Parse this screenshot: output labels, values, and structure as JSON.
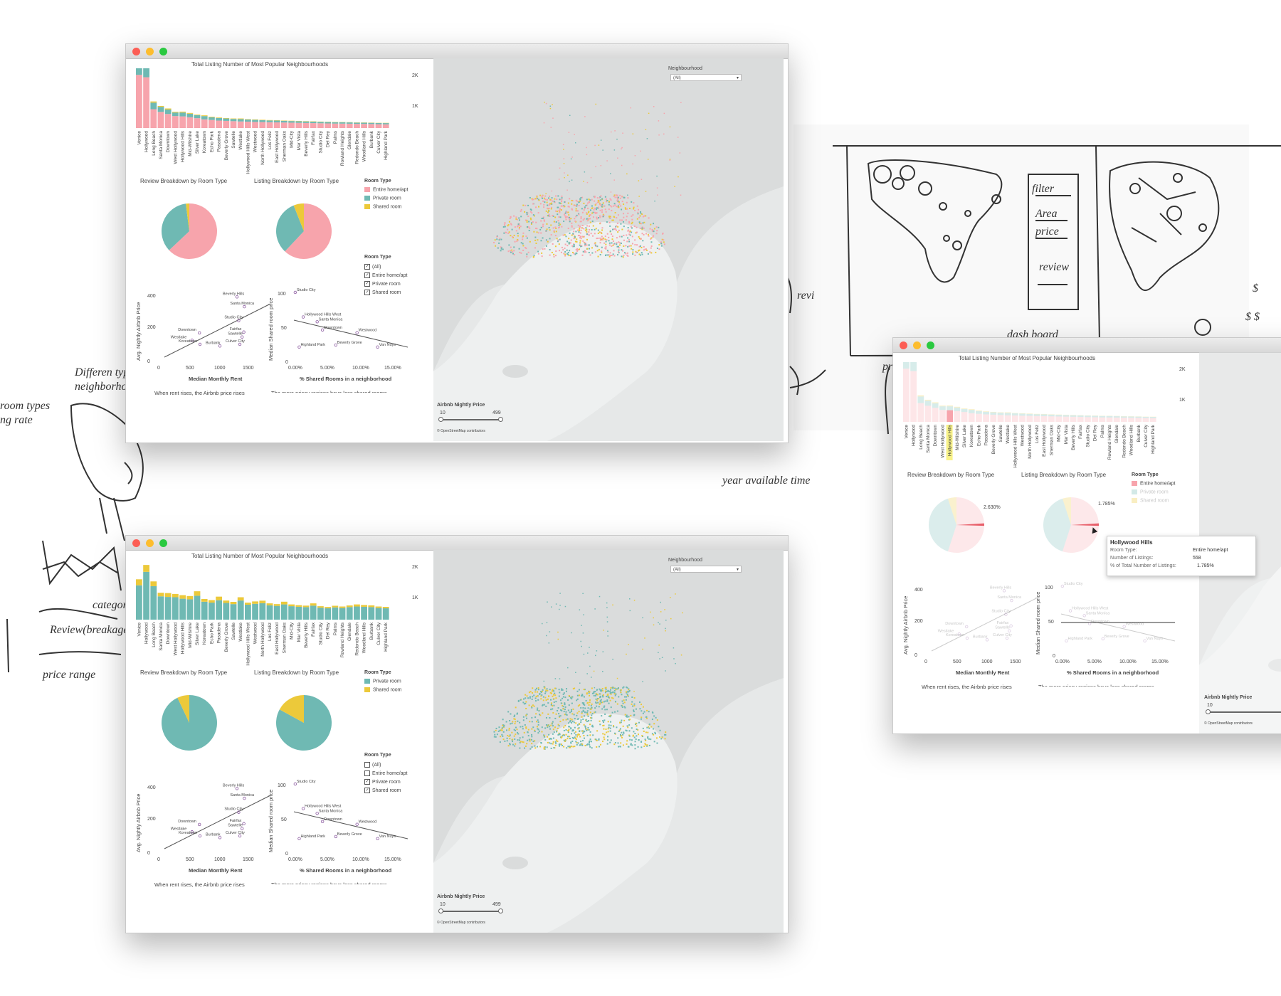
{
  "colors": {
    "entire": "#f7a4ac",
    "private": "#6fb9b3",
    "shared": "#ecc93a",
    "map_bg": "#e6e8e8",
    "point": "#8b5aa0"
  },
  "dashboard": {
    "bar_title": "Total Listing Number of Most Popular Neighbourhoods",
    "y_ticks": [
      "2K",
      "1K"
    ],
    "review_title": "Review Breakdown by Room Type",
    "listing_title": "Listing Breakdown by Room Type",
    "legend_title": "Room Type",
    "filter_title": "Room Type",
    "neigh_label": "Neighbourhood",
    "neigh_value": "(All)",
    "price_label": "Airbnb Nightly Price",
    "price_min": "10",
    "price_max": "499",
    "osm": "© OpenStreetMap contributors",
    "s1_ylabel": "Avg. Nightly Airbnb Price",
    "s1_xlabel": "Median Monthly Rent",
    "s1_yticks": [
      "400",
      "200",
      "0"
    ],
    "s1_xticks": [
      "0",
      "500",
      "1000",
      "1500"
    ],
    "s1_caption": "When rent rises, the Airbnb price rises",
    "s2_ylabel": "Median Shared room price",
    "s2_xlabel": "% Shared Rooms in a neighborhood",
    "s2_yticks": [
      "100",
      "50",
      "0"
    ],
    "s2_xticks": [
      "0.00%",
      "5.00%",
      "10.00%",
      "15.00%"
    ],
    "s2_caption": "The more pricey regions have less shared rooms"
  },
  "legend_items": [
    "Entire home/apt",
    "Private room",
    "Shared room"
  ],
  "filter_items": [
    "(All)",
    "Entire home/apt",
    "Private room",
    "Shared room"
  ],
  "neighbourhoods": [
    "Venice",
    "Hollywood",
    "Long Beach",
    "Santa Monica",
    "Downtown",
    "West Hollywood",
    "Hollywood Hills",
    "Mid-Wilshire",
    "Silver Lake",
    "Koreatown",
    "Echo Park",
    "Pasadena",
    "Beverly Grove",
    "Sawtelle",
    "Westlake",
    "Hollywood Hills West",
    "Westwood",
    "North Hollywood",
    "Los Feliz",
    "East Hollywood",
    "Sherman Oaks",
    "Mid-City",
    "Mar Vista",
    "Beverly Hills",
    "Fairfax",
    "Studio City",
    "Del Rey",
    "Palms",
    "Rowland Heights",
    "Glendale",
    "Redondo Beach",
    "Woodland Hills",
    "Burbank",
    "Culver City",
    "Highland Park"
  ],
  "windows": [
    {
      "name": "window-entire",
      "chart_data": {
        "type": "bar",
        "series": [
          {
            "name": "Entire home/apt",
            "values": [
              1780,
              1700,
              630,
              540,
              470,
              400,
              390,
              360,
              330,
              290,
              270,
              250,
              240,
              230,
              220,
              215,
              205,
              200,
              195,
              190,
              185,
              180,
              175,
              170,
              165,
              160,
              155,
              150,
              148,
              145,
              140,
              138,
              135,
              130,
              125
            ]
          },
          {
            "name": "Private room",
            "values": [
              480,
              560,
              220,
              170,
              150,
              120,
              130,
              120,
              100,
              110,
              90,
              85,
              80,
              75,
              80,
              70,
              70,
              65,
              60,
              62,
              58,
              55,
              54,
              52,
              50,
              48,
              47,
              45,
              46,
              44,
              42,
              41,
              40,
              38,
              40
            ]
          },
          {
            "name": "Shared room",
            "values": [
              60,
              80,
              40,
              30,
              35,
              25,
              30,
              25,
              20,
              25,
              20,
              18,
              15,
              15,
              20,
              12,
              14,
              14,
              12,
              12,
              10,
              10,
              10,
              10,
              10,
              9,
              9,
              9,
              9,
              8,
              8,
              8,
              8,
              7,
              8
            ]
          }
        ]
      },
      "review_pie": [
        0.63,
        0.35,
        0.02
      ],
      "listing_pie": [
        0.62,
        0.32,
        0.06
      ],
      "checked": [
        true,
        true,
        true,
        true
      ]
    },
    {
      "name": "window-private",
      "chart_data": {
        "type": "bar",
        "series": [
          {
            "name": "Private room",
            "values": [
              1150,
              1600,
              1120,
              780,
              760,
              750,
              700,
              680,
              800,
              600,
              570,
              650,
              560,
              520,
              640,
              500,
              530,
              550,
              480,
              460,
              510,
              450,
              430,
              420,
              470,
              400,
              380,
              410,
              390,
              420,
              440,
              430,
              420,
              390,
              380
            ]
          },
          {
            "name": "Shared room",
            "values": [
              200,
              230,
              160,
              120,
              130,
              110,
              120,
              110,
              150,
              90,
              85,
              120,
              80,
              75,
              110,
              70,
              80,
              85,
              65,
              60,
              90,
              60,
              55,
              50,
              75,
              50,
              45,
              55,
              50,
              55,
              70,
              60,
              58,
              50,
              48
            ]
          }
        ]
      },
      "review_pie": [
        0,
        0.93,
        0.07
      ],
      "listing_pie": [
        0,
        0.83,
        0.17
      ],
      "checked": [
        false,
        false,
        true,
        true
      ]
    },
    {
      "name": "window-tooltip",
      "tooltip": {
        "name": "Hollywood Hills",
        "k1": "Room Type:",
        "v1": "Entire home/apt",
        "k2": "Number of Listings:",
        "v2": "558",
        "k3": "% of Total Number of Listings:",
        "v3": "1.785%"
      },
      "review_label": "2.630%",
      "listing_label": "1.785%"
    }
  ],
  "scatter_points": [
    {
      "name": "Beverly Hills",
      "x": 1350,
      "y": 390
    },
    {
      "name": "Santa Monica",
      "x": 1480,
      "y": 330
    },
    {
      "name": "Studio City",
      "x": 1380,
      "y": 245
    },
    {
      "name": "Fairfax",
      "x": 1470,
      "y": 175
    },
    {
      "name": "Sawtelle",
      "x": 1440,
      "y": 145
    },
    {
      "name": "Culver City",
      "x": 1400,
      "y": 100
    },
    {
      "name": "Downtown",
      "x": 690,
      "y": 170
    },
    {
      "name": "Westlake",
      "x": 560,
      "y": 125
    },
    {
      "name": "Koreatown",
      "x": 700,
      "y": 100
    },
    {
      "name": "Burbank",
      "x": 1050,
      "y": 90
    }
  ],
  "shared_points": [
    {
      "name": "Studio City",
      "x": 0.2,
      "y": 100
    },
    {
      "name": "Hollywood Hills West",
      "x": 1.4,
      "y": 64
    },
    {
      "name": "Santa Monica",
      "x": 3.5,
      "y": 57
    },
    {
      "name": "Downtown",
      "x": 4.3,
      "y": 45
    },
    {
      "name": "Westwood",
      "x": 9.5,
      "y": 41
    },
    {
      "name": "Highland Park",
      "x": 0.8,
      "y": 20
    },
    {
      "name": "Beverly Grove",
      "x": 6.3,
      "y": 23
    },
    {
      "name": "Van Nuys",
      "x": 12.6,
      "y": 20
    }
  ]
}
